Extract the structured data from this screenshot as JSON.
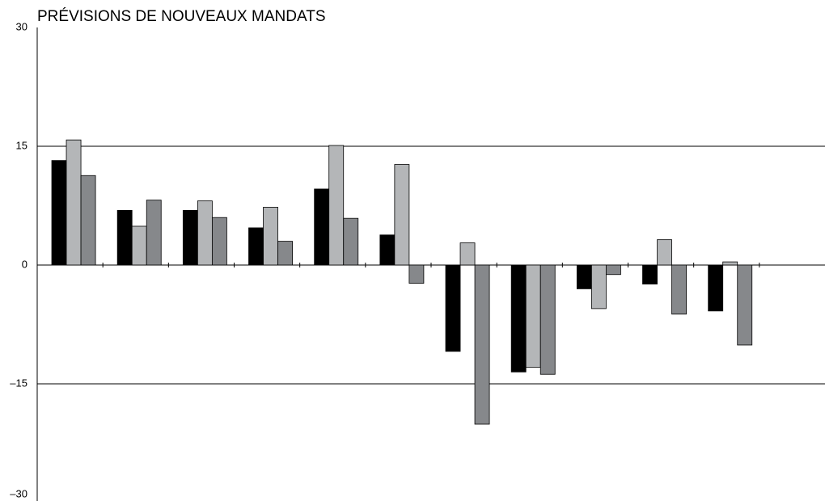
{
  "chart_data": {
    "type": "bar",
    "title": "PRÉVISIONS DE NOUVEAUX MANDATS",
    "categories": [
      null,
      null,
      null,
      null,
      null,
      null,
      null,
      null,
      null,
      null,
      null,
      null
    ],
    "series": [
      {
        "color": "#000000",
        "values": [
          13.2,
          6.9,
          6.9,
          4.7,
          9.6,
          3.8,
          -10.9,
          -13.5,
          -3.0,
          -2.4,
          -5.8,
          null
        ]
      },
      {
        "color": "#b4b6b8",
        "values": [
          15.8,
          4.9,
          8.1,
          7.3,
          15.1,
          12.7,
          2.8,
          -12.9,
          -5.5,
          3.2,
          0.4,
          null
        ]
      },
      {
        "color": "#86888b",
        "values": [
          11.3,
          8.2,
          6.0,
          3.0,
          5.9,
          -2.3,
          -20.1,
          -13.8,
          -1.2,
          -6.2,
          -10.1,
          null
        ]
      }
    ],
    "ylim": [
      -30,
      30
    ],
    "yticks": [
      {
        "value": -30,
        "label": "–30"
      },
      {
        "value": -15,
        "label": "–15"
      },
      0,
      15,
      30
    ],
    "grid": true
  }
}
